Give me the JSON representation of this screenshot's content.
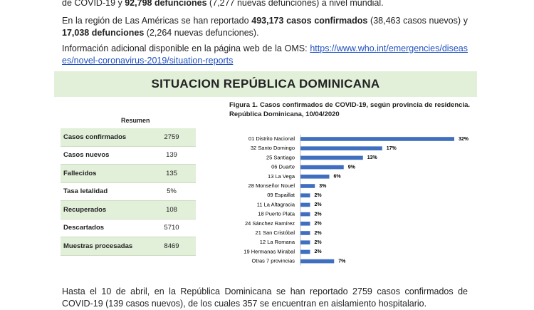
{
  "intro": {
    "p1": [
      "de COVID-19 y ",
      "92,798 defunciones",
      " (7,277 nuevas defunciones) a nivel mundial."
    ],
    "p2": [
      "En la región de Las Américas se han reportado ",
      "493,173 casos confirmados",
      " (38,463 casos nuevos) y ",
      "17,038 defunciones",
      " (2,264 nuevas defunciones)."
    ],
    "p3": [
      "Información adicional disponible en la página web de la OMS: ",
      "https://www.who.int/emergencies/diseases/novel-coronavirus-2019/situation-reports"
    ]
  },
  "banner": "SITUACION REPÚBLICA DOMINICANA",
  "table": {
    "title": "Resumen",
    "rows": [
      [
        "Casos confirmados",
        "2759"
      ],
      [
        "Casos nuevos",
        "139"
      ],
      [
        "Fallecidos",
        "135"
      ],
      [
        "Tasa letalidad",
        "5%"
      ],
      [
        "Recuperados",
        "108"
      ],
      [
        "Descartados",
        "5710"
      ],
      [
        "Muestras procesadas",
        "8469"
      ]
    ]
  },
  "chart_data": {
    "type": "hbar",
    "title": "Figura 1. Casos confirmados de COVID-19, según provincia de residencia. República Dominicana, 10/04/2020",
    "categories": [
      "01 Distrito Nacional",
      "32 Santo Domingo",
      "25 Santiago",
      "06 Duarte",
      "13 La Vega",
      "28 Monseñor Nouel",
      "09 Espaillat",
      "11 La Altagracia",
      "18 Puerto Plata",
      "24 Sánchez Ramírez",
      "21 San Cristóbal",
      "12 La Romana",
      "19 Hermanas Mirabal",
      "Otras 7 provincias"
    ],
    "values": [
      32,
      17,
      13,
      9,
      6,
      3,
      2,
      2,
      2,
      2,
      2,
      2,
      2,
      7
    ],
    "value_labels": [
      "32%",
      "17%",
      "13%",
      "9%",
      "6%",
      "3%",
      "2%",
      "2%",
      "2%",
      "2%",
      "2%",
      "2%",
      "2%",
      "7%"
    ],
    "color": "#3f6fbe"
  },
  "footer": "Hasta el 10 de abril, en la República Dominicana se han reportado 2759 casos confirmados de COVID-19 (139 casos nuevos), de los cuales 357 se encuentran en aislamiento hospitalario."
}
